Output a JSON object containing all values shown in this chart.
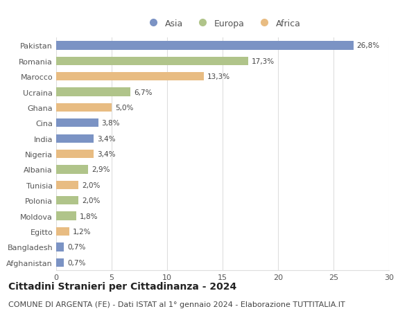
{
  "countries": [
    "Pakistan",
    "Romania",
    "Marocco",
    "Ucraina",
    "Ghana",
    "Cina",
    "India",
    "Nigeria",
    "Albania",
    "Tunisia",
    "Polonia",
    "Moldova",
    "Egitto",
    "Bangladesh",
    "Afghanistan"
  ],
  "values": [
    26.8,
    17.3,
    13.3,
    6.7,
    5.0,
    3.8,
    3.4,
    3.4,
    2.9,
    2.0,
    2.0,
    1.8,
    1.2,
    0.7,
    0.7
  ],
  "labels": [
    "26,8%",
    "17,3%",
    "13,3%",
    "6,7%",
    "5,0%",
    "3,8%",
    "3,4%",
    "3,4%",
    "2,9%",
    "2,0%",
    "2,0%",
    "1,8%",
    "1,2%",
    "0,7%",
    "0,7%"
  ],
  "continents": [
    "Asia",
    "Europa",
    "Africa",
    "Europa",
    "Africa",
    "Asia",
    "Asia",
    "Africa",
    "Europa",
    "Africa",
    "Europa",
    "Europa",
    "Africa",
    "Asia",
    "Asia"
  ],
  "colors": {
    "Asia": "#7b93c4",
    "Europa": "#b0c48a",
    "Africa": "#e8bc82"
  },
  "legend_labels": [
    "Asia",
    "Europa",
    "Africa"
  ],
  "xlim": [
    0,
    30
  ],
  "xticks": [
    0,
    5,
    10,
    15,
    20,
    25,
    30
  ],
  "title": "Cittadini Stranieri per Cittadinanza - 2024",
  "subtitle": "COMUNE DI ARGENTA (FE) - Dati ISTAT al 1° gennaio 2024 - Elaborazione TUTTITALIA.IT",
  "title_fontsize": 10,
  "subtitle_fontsize": 8,
  "bar_label_fontsize": 7.5,
  "ytick_fontsize": 8,
  "xtick_fontsize": 8,
  "legend_fontsize": 9,
  "background_color": "#ffffff",
  "grid_color": "#dddddd",
  "bar_height": 0.55
}
